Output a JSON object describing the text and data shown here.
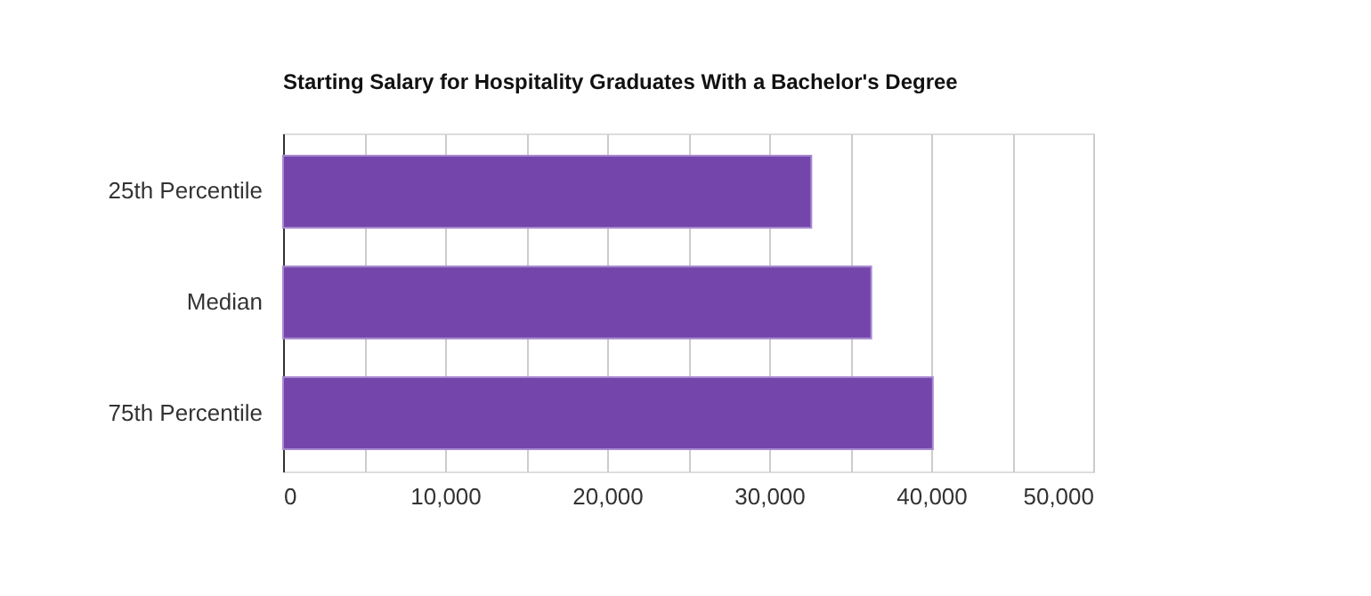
{
  "chart_data": {
    "type": "bar",
    "orientation": "horizontal",
    "title": "Starting Salary for Hospitality Graduates With a Bachelor's Degree",
    "categories": [
      "25th Percentile",
      "Median",
      "75th Percentile"
    ],
    "values": [
      32600,
      36300,
      40100
    ],
    "color": "#7446ac",
    "xlim": [
      0,
      50000
    ],
    "xticks": [
      0,
      {
        "value": 5000,
        "label": null
      },
      {
        "value": 10000,
        "label": "10,000"
      },
      {
        "value": 15000,
        "label": null
      },
      {
        "value": 20000,
        "label": "20,000"
      },
      {
        "value": 25000,
        "label": null
      },
      {
        "value": 30000,
        "label": "30,000"
      },
      {
        "value": 35000,
        "label": null
      },
      {
        "value": 40000,
        "label": "40,000"
      },
      {
        "value": 45000,
        "label": null
      },
      {
        "value": 50000,
        "label": "50,000"
      }
    ],
    "grid": "x"
  }
}
